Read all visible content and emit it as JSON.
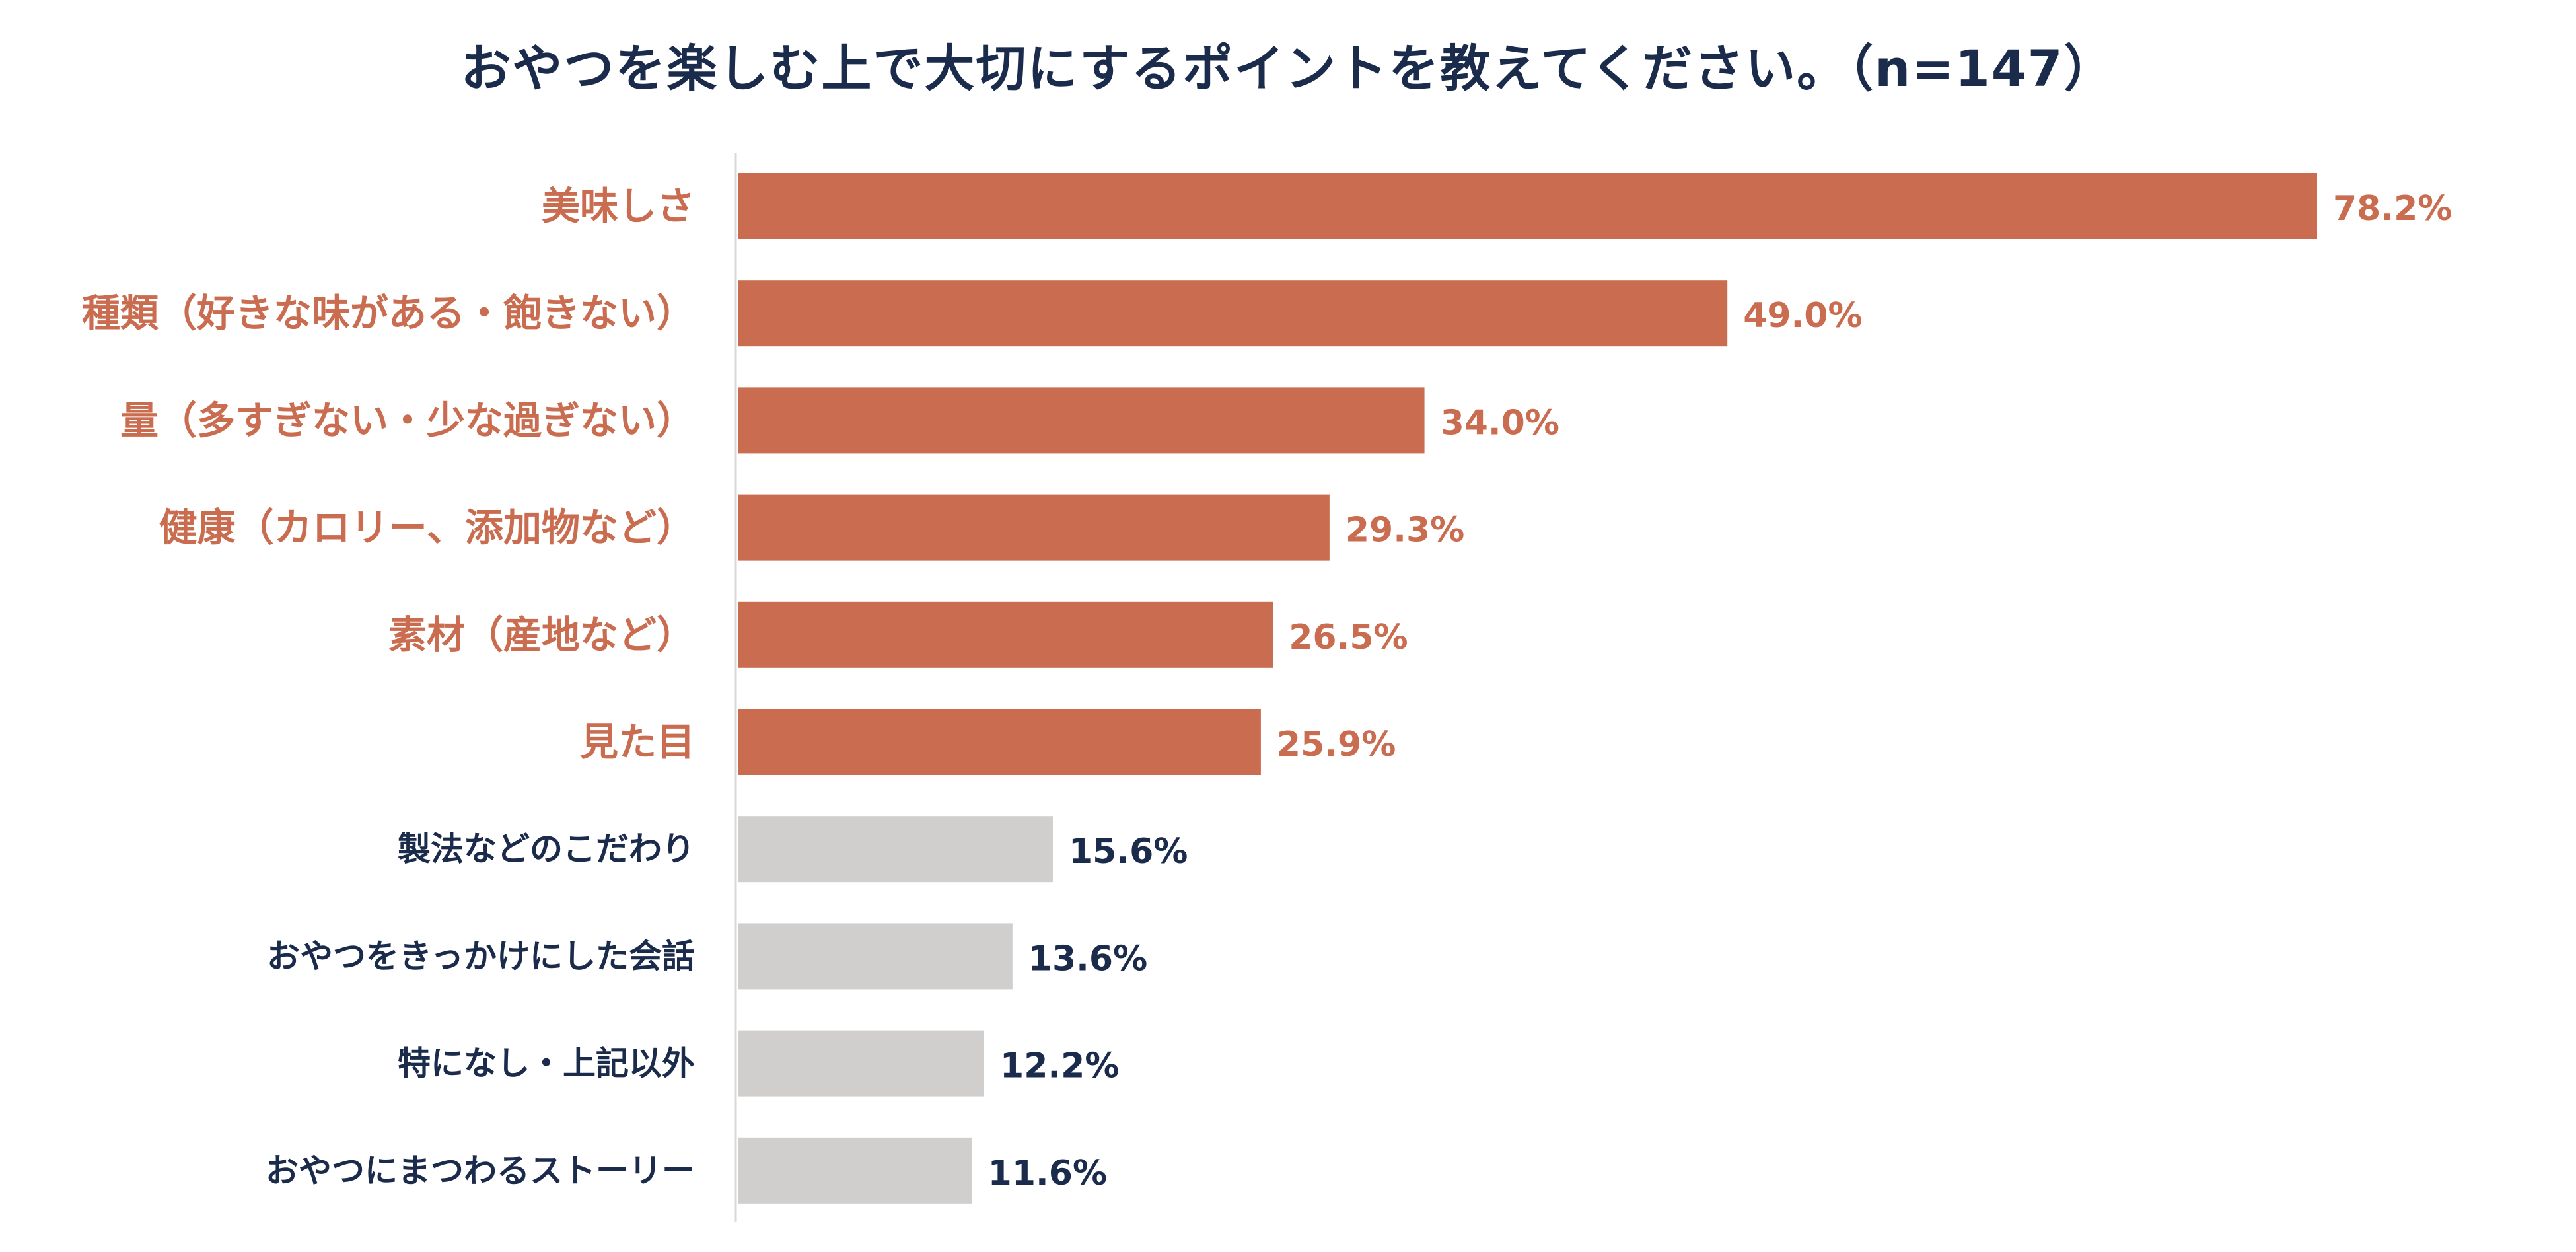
{
  "chart_data": {
    "type": "bar",
    "orientation": "horizontal",
    "title": "おやつを楽しむ上で大切にするポイントを教えてください。（n=147）",
    "categories": [
      "美味しさ",
      "種類（好きな味がある・飽きない）",
      "量（多すぎない・少な過ぎない）",
      "健康（カロリー、添加物など）",
      "素材（産地など）",
      "見た目",
      "製法などのこだわり",
      "おやつをきっかけにした会話",
      "特になし・上記以外",
      "おやつにまつわるストーリー"
    ],
    "values": [
      78.2,
      49.0,
      34.0,
      29.3,
      26.5,
      25.9,
      15.6,
      13.6,
      12.2,
      11.6
    ],
    "value_labels": [
      "78.2%",
      "49.0%",
      "34.0%",
      "29.3%",
      "26.5%",
      "25.9%",
      "15.6%",
      "13.6%",
      "12.2%",
      "11.6%"
    ],
    "highlighted_count": 6,
    "colors": {
      "highlight": "#c96c4f",
      "other": "#d0cfcd",
      "highlight_text": "#c96c4f",
      "other_text": "#1b2b4b",
      "axis": "#d9d9d9"
    },
    "xlim": [
      0,
      78.2
    ],
    "grid": false,
    "legend": "none"
  }
}
